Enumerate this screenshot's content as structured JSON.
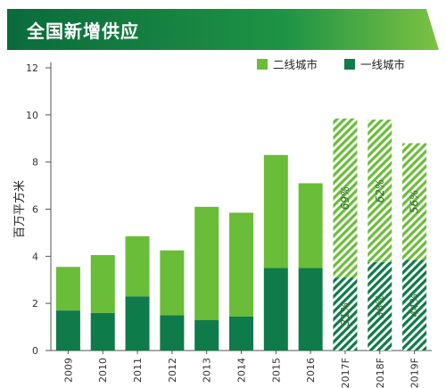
{
  "banner": {
    "title": "全国新增供应"
  },
  "chart_data": {
    "type": "bar",
    "stacked": true,
    "title": "全国新增供应",
    "ylabel": "百万平方米",
    "xlabel": "",
    "ylim": [
      0,
      12
    ],
    "yticks": [
      0,
      2,
      4,
      6,
      8,
      10,
      12
    ],
    "categories": [
      "2009",
      "2010",
      "2011",
      "2012",
      "2013",
      "2014",
      "2015",
      "2016",
      "2017F",
      "2018F",
      "2019F"
    ],
    "forecast_categories": [
      "2017F",
      "2018F",
      "2019F"
    ],
    "legend_position": "top-right",
    "series": [
      {
        "name": "一线城市",
        "color": "#0f7a4a",
        "values": [
          1.7,
          1.6,
          2.3,
          1.5,
          1.3,
          1.45,
          3.5,
          3.5,
          3.1,
          3.75,
          3.85
        ]
      },
      {
        "name": "二线城市",
        "color": "#6abd38",
        "values": [
          1.85,
          2.45,
          2.55,
          2.75,
          4.8,
          4.4,
          4.8,
          3.6,
          6.75,
          6.05,
          4.95
        ]
      }
    ],
    "legend_order": [
      "二线城市",
      "一线城市"
    ],
    "forecast_labels": {
      "一线城市": [
        "31%",
        "38%",
        "44%"
      ],
      "二线城市": [
        "69%",
        "62%",
        "56%"
      ]
    }
  }
}
